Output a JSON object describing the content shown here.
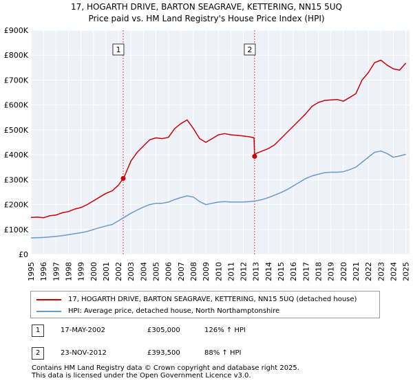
{
  "chart_data": {
    "type": "line",
    "title": "17, HOGARTH DRIVE, BARTON SEAGRAVE, KETTERING, NN15 5UQ",
    "subtitle": "Price paid vs. HM Land Registry's House Price Index (HPI)",
    "xlim": [
      1995,
      2025.3
    ],
    "ylim": [
      0,
      900000
    ],
    "x_ticks": [
      1995,
      1996,
      1997,
      1998,
      1999,
      2000,
      2001,
      2002,
      2003,
      2004,
      2005,
      2006,
      2007,
      2008,
      2009,
      2010,
      2011,
      2012,
      2013,
      2014,
      2015,
      2016,
      2017,
      2018,
      2019,
      2020,
      2021,
      2022,
      2023,
      2024,
      2025
    ],
    "x_tick_labels": [
      "1995",
      "1996",
      "1997",
      "1998",
      "1999",
      "2000",
      "2001",
      "2002",
      "2003",
      "2004",
      "2005",
      "2006",
      "2007",
      "2008",
      "2009",
      "2010",
      "2011",
      "2012",
      "2013",
      "2014",
      "2015",
      "2016",
      "2017",
      "2018",
      "2019",
      "2020",
      "2021",
      "2022",
      "2023",
      "2024",
      "2025"
    ],
    "y_ticks": [
      0,
      100000,
      200000,
      300000,
      400000,
      500000,
      600000,
      700000,
      800000,
      900000
    ],
    "y_tick_labels": [
      "£0",
      "£100K",
      "£200K",
      "£300K",
      "£400K",
      "£500K",
      "£600K",
      "£700K",
      "£800K",
      "£900K"
    ],
    "grid": true,
    "series": [
      {
        "name": "17, HOGARTH DRIVE, BARTON SEAGRAVE, KETTERING, NN15 5UQ (detached house)",
        "color": "#cc0000",
        "x": [
          1995,
          1995.5,
          1996,
          1996.5,
          1997,
          1997.5,
          1998,
          1998.5,
          1999,
          1999.5,
          2000,
          2000.5,
          2001,
          2001.5,
          2002,
          2002.38,
          2002.5,
          2003,
          2003.5,
          2004,
          2004.5,
          2005,
          2005.5,
          2006,
          2006.5,
          2007,
          2007.5,
          2008,
          2008.5,
          2009,
          2009.5,
          2010,
          2010.5,
          2011,
          2011.5,
          2012,
          2012.5,
          2012.85,
          2012.9,
          2013,
          2013.5,
          2014,
          2014.5,
          2015,
          2015.5,
          2016,
          2016.5,
          2017,
          2017.5,
          2018,
          2018.5,
          2019,
          2019.5,
          2020,
          2020.5,
          2021,
          2021.5,
          2022,
          2022.5,
          2023,
          2023.5,
          2024,
          2024.5,
          2025
        ],
        "values": [
          148000,
          150000,
          147000,
          155000,
          158000,
          167000,
          172000,
          182000,
          188000,
          200000,
          215000,
          230000,
          245000,
          255000,
          278000,
          305000,
          315000,
          375000,
          410000,
          435000,
          460000,
          468000,
          465000,
          470000,
          505000,
          525000,
          540000,
          505000,
          465000,
          450000,
          465000,
          480000,
          485000,
          480000,
          478000,
          475000,
          472000,
          468000,
          393500,
          405000,
          415000,
          425000,
          440000,
          465000,
          490000,
          515000,
          540000,
          565000,
          595000,
          610000,
          618000,
          620000,
          622000,
          615000,
          630000,
          645000,
          700000,
          730000,
          770000,
          780000,
          760000,
          745000,
          740000,
          768000
        ]
      },
      {
        "name": "HPI: Average price, detached house, North Northamptonshire",
        "color": "#6699cc",
        "x": [
          1995,
          1995.5,
          1996,
          1996.5,
          1997,
          1997.5,
          1998,
          1998.5,
          1999,
          1999.5,
          2000,
          2000.5,
          2001,
          2001.5,
          2002,
          2002.5,
          2003,
          2003.5,
          2004,
          2004.5,
          2005,
          2005.5,
          2006,
          2006.5,
          2007,
          2007.5,
          2008,
          2008.5,
          2009,
          2009.5,
          2010,
          2010.5,
          2011,
          2011.5,
          2012,
          2012.5,
          2013,
          2013.5,
          2014,
          2014.5,
          2015,
          2015.5,
          2016,
          2016.5,
          2017,
          2017.5,
          2018,
          2018.5,
          2019,
          2019.5,
          2020,
          2020.5,
          2021,
          2021.5,
          2022,
          2022.5,
          2023,
          2023.5,
          2024,
          2024.5,
          2025
        ],
        "values": [
          66000,
          67000,
          68000,
          70000,
          72000,
          75000,
          79000,
          83000,
          87000,
          92000,
          100000,
          107000,
          114000,
          120000,
          135000,
          150000,
          165000,
          178000,
          190000,
          200000,
          205000,
          205000,
          210000,
          220000,
          228000,
          235000,
          230000,
          212000,
          200000,
          205000,
          210000,
          212000,
          210000,
          210000,
          210000,
          212000,
          215000,
          220000,
          228000,
          238000,
          248000,
          260000,
          275000,
          290000,
          305000,
          315000,
          322000,
          328000,
          330000,
          330000,
          332000,
          340000,
          350000,
          370000,
          390000,
          410000,
          415000,
          405000,
          390000,
          395000,
          402000
        ]
      }
    ],
    "annotations": [
      {
        "label": "1",
        "x": 2002.38
      },
      {
        "label": "2",
        "x": 2012.9
      }
    ],
    "sale_points": [
      {
        "x": 2002.38,
        "y": 305000
      },
      {
        "x": 2012.9,
        "y": 393500
      }
    ]
  },
  "legend": {
    "property_label": "17, HOGARTH DRIVE, BARTON SEAGRAVE, KETTERING, NN15 5UQ (detached house)",
    "hpi_label": "HPI: Average price, detached house, North Northamptonshire",
    "property_color": "#cc0000",
    "hpi_color": "#6699cc"
  },
  "sales": [
    {
      "num": "1",
      "date": "17-MAY-2002",
      "price": "£305,000",
      "hpi": "126% ↑ HPI"
    },
    {
      "num": "2",
      "date": "23-NOV-2012",
      "price": "£393,500",
      "hpi": "88% ↑ HPI"
    }
  ],
  "footer": {
    "line1": "Contains HM Land Registry data © Crown copyright and database right 2025.",
    "line2": "This data is licensed under the Open Government Licence v3.0."
  }
}
